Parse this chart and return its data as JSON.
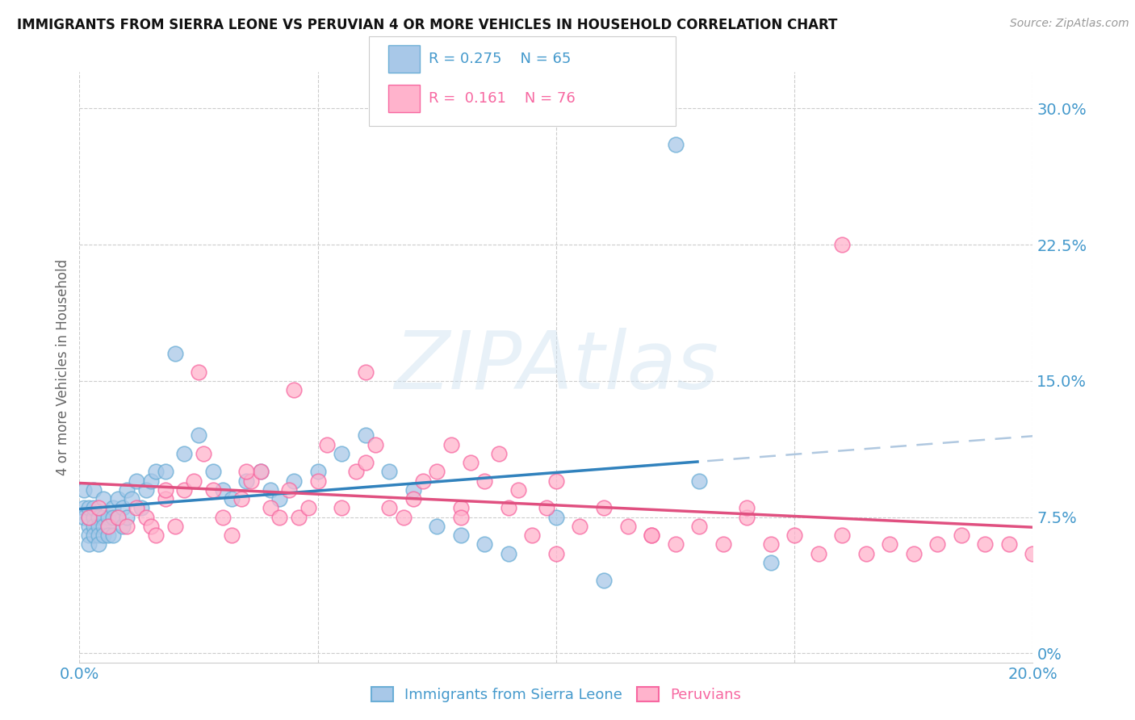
{
  "title": "IMMIGRANTS FROM SIERRA LEONE VS PERUVIAN 4 OR MORE VEHICLES IN HOUSEHOLD CORRELATION CHART",
  "source": "Source: ZipAtlas.com",
  "ylabel": "4 or more Vehicles in Household",
  "watermark": "ZIPAtlas",
  "xlim": [
    0.0,
    0.2
  ],
  "ylim": [
    -0.005,
    0.32
  ],
  "yticks": [
    0.0,
    0.075,
    0.15,
    0.225,
    0.3
  ],
  "xticks": [
    0.0,
    0.05,
    0.1,
    0.15,
    0.2
  ],
  "legend_r1": "R = 0.275",
  "legend_n1": "N = 65",
  "legend_r2": "R =  0.161",
  "legend_n2": "N = 76",
  "blue_scatter_color": "#a8c8e8",
  "blue_edge_color": "#6baed6",
  "pink_scatter_color": "#ffb3cc",
  "pink_edge_color": "#f768a1",
  "blue_line_color": "#3182bd",
  "pink_line_color": "#e05080",
  "dashed_line_color": "#b0c8e0",
  "tick_color": "#4499cc",
  "sl_x": [
    0.001,
    0.001,
    0.001,
    0.002,
    0.002,
    0.002,
    0.002,
    0.002,
    0.003,
    0.003,
    0.003,
    0.003,
    0.003,
    0.004,
    0.004,
    0.004,
    0.004,
    0.005,
    0.005,
    0.005,
    0.005,
    0.006,
    0.006,
    0.006,
    0.007,
    0.007,
    0.007,
    0.008,
    0.008,
    0.009,
    0.009,
    0.01,
    0.01,
    0.011,
    0.012,
    0.013,
    0.014,
    0.015,
    0.016,
    0.018,
    0.02,
    0.022,
    0.025,
    0.028,
    0.03,
    0.032,
    0.035,
    0.038,
    0.04,
    0.042,
    0.045,
    0.05,
    0.055,
    0.06,
    0.065,
    0.07,
    0.075,
    0.08,
    0.085,
    0.09,
    0.1,
    0.11,
    0.125,
    0.13,
    0.145
  ],
  "sl_y": [
    0.08,
    0.09,
    0.075,
    0.07,
    0.075,
    0.08,
    0.065,
    0.06,
    0.09,
    0.075,
    0.07,
    0.065,
    0.08,
    0.075,
    0.07,
    0.065,
    0.06,
    0.085,
    0.075,
    0.07,
    0.065,
    0.075,
    0.07,
    0.065,
    0.08,
    0.075,
    0.065,
    0.085,
    0.075,
    0.08,
    0.07,
    0.09,
    0.075,
    0.085,
    0.095,
    0.08,
    0.09,
    0.095,
    0.1,
    0.1,
    0.165,
    0.11,
    0.12,
    0.1,
    0.09,
    0.085,
    0.095,
    0.1,
    0.09,
    0.085,
    0.095,
    0.1,
    0.11,
    0.12,
    0.1,
    0.09,
    0.07,
    0.065,
    0.06,
    0.055,
    0.075,
    0.04,
    0.28,
    0.095,
    0.05
  ],
  "pe_x": [
    0.002,
    0.004,
    0.006,
    0.008,
    0.01,
    0.012,
    0.014,
    0.015,
    0.016,
    0.018,
    0.02,
    0.022,
    0.024,
    0.026,
    0.028,
    0.03,
    0.032,
    0.034,
    0.036,
    0.038,
    0.04,
    0.042,
    0.044,
    0.046,
    0.048,
    0.05,
    0.052,
    0.055,
    0.058,
    0.06,
    0.062,
    0.065,
    0.068,
    0.07,
    0.072,
    0.075,
    0.078,
    0.08,
    0.082,
    0.085,
    0.088,
    0.09,
    0.092,
    0.095,
    0.098,
    0.1,
    0.105,
    0.11,
    0.115,
    0.12,
    0.125,
    0.13,
    0.135,
    0.14,
    0.145,
    0.15,
    0.155,
    0.16,
    0.165,
    0.17,
    0.175,
    0.18,
    0.185,
    0.19,
    0.195,
    0.2,
    0.16,
    0.14,
    0.1,
    0.12,
    0.08,
    0.06,
    0.045,
    0.035,
    0.025,
    0.018
  ],
  "pe_y": [
    0.075,
    0.08,
    0.07,
    0.075,
    0.07,
    0.08,
    0.075,
    0.07,
    0.065,
    0.085,
    0.07,
    0.09,
    0.095,
    0.11,
    0.09,
    0.075,
    0.065,
    0.085,
    0.095,
    0.1,
    0.08,
    0.075,
    0.09,
    0.075,
    0.08,
    0.095,
    0.115,
    0.08,
    0.1,
    0.105,
    0.115,
    0.08,
    0.075,
    0.085,
    0.095,
    0.1,
    0.115,
    0.08,
    0.105,
    0.095,
    0.11,
    0.08,
    0.09,
    0.065,
    0.08,
    0.095,
    0.07,
    0.08,
    0.07,
    0.065,
    0.06,
    0.07,
    0.06,
    0.075,
    0.06,
    0.065,
    0.055,
    0.065,
    0.055,
    0.06,
    0.055,
    0.06,
    0.065,
    0.06,
    0.06,
    0.055,
    0.225,
    0.08,
    0.055,
    0.065,
    0.075,
    0.155,
    0.145,
    0.1,
    0.155,
    0.09
  ]
}
